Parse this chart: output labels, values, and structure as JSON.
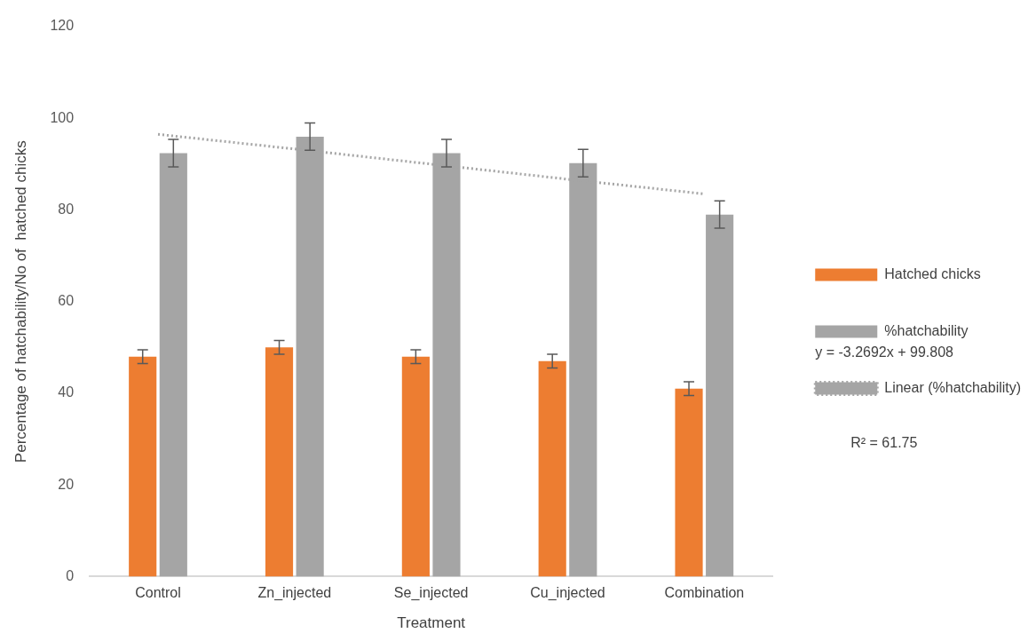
{
  "chart_data": {
    "type": "bar",
    "xlabel": "Treatment",
    "ylabel": "Percentage of hatchability/No of  hatched chicks",
    "categories": [
      "Control",
      "Zn_injected",
      "Se_injected",
      "Cu_injected",
      "Combination"
    ],
    "series": [
      {
        "name": "Hatched chicks",
        "color": "#ed7d31",
        "values": [
          48,
          50,
          48,
          47,
          41
        ],
        "errors": [
          1.5,
          1.5,
          1.5,
          1.5,
          1.5
        ]
      },
      {
        "name": "%hatchability",
        "color": "#a5a5a5",
        "values": [
          92.4,
          96,
          92.4,
          90.2,
          79
        ],
        "errors": [
          3,
          3,
          3,
          3,
          3
        ]
      },
      {
        "name": "Linear (%hatchability)",
        "type": "line",
        "color": "#a5a5a5",
        "line_style": "dotted",
        "values": [
          96.5,
          93.3,
          90,
          86.7,
          83.5
        ]
      }
    ],
    "annotations": [
      "y = -3.2692x + 99.808",
      "R² = 61.75"
    ],
    "ylim": [
      0,
      120
    ],
    "yticks": [
      0,
      20,
      40,
      60,
      80,
      100,
      120
    ],
    "grid": false,
    "legend": "right"
  }
}
